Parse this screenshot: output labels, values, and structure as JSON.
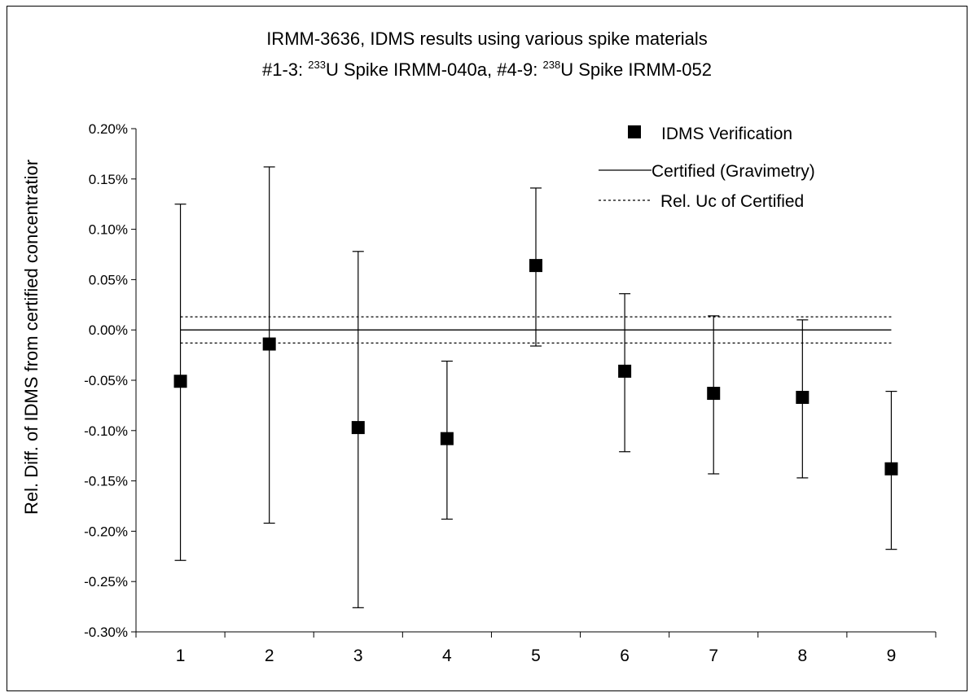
{
  "chart_data": {
    "type": "scatter",
    "title_line1": "IRMM-3636,  IDMS results using various spike materials",
    "title_line2": {
      "a": "#1-3: ",
      "a_sup": "233",
      "b": "U Spike IRMM-040a, #4-9: ",
      "b_sup": "238",
      "c": "U Spike IRMM-052"
    },
    "ylabel": "Rel. Diff. of IDMS from certified concentratior",
    "xlabel": "",
    "categories": [
      "1",
      "2",
      "3",
      "4",
      "5",
      "6",
      "7",
      "8",
      "9"
    ],
    "ylim": [
      -0.3,
      0.2
    ],
    "yticks": [
      0.2,
      0.15,
      0.1,
      0.05,
      0.0,
      -0.05,
      -0.1,
      -0.15,
      -0.2,
      -0.25,
      -0.3
    ],
    "ytick_labels": [
      "0.20%",
      "0.15%",
      "0.10%",
      "0.05%",
      "0.00%",
      "-0.05%",
      "-0.10%",
      "-0.15%",
      "-0.20%",
      "-0.25%",
      "-0.30%"
    ],
    "series": [
      {
        "name": "IDMS Verification",
        "marker": "square",
        "color": "#000000",
        "values": [
          -0.051,
          -0.014,
          -0.097,
          -0.108,
          0.064,
          -0.041,
          -0.063,
          -0.067,
          -0.138
        ],
        "err_upper": [
          0.125,
          0.162,
          0.078,
          -0.031,
          0.141,
          0.036,
          0.014,
          0.01,
          -0.061
        ],
        "err_lower": [
          -0.229,
          -0.192,
          -0.276,
          -0.188,
          -0.016,
          -0.121,
          -0.143,
          -0.147,
          -0.218
        ]
      },
      {
        "name": "Certified (Gravimetry)",
        "line": "solid",
        "value": 0.0
      },
      {
        "name": "Rel. Uc of Certified",
        "line": "dotted",
        "values": [
          0.013,
          -0.013
        ]
      }
    ],
    "legend_position": "top-right",
    "grid": false
  }
}
